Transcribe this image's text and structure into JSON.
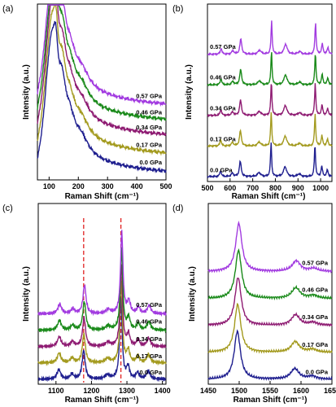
{
  "colors": {
    "0.0 GPa": "#1f1f8f",
    "0.17 GPa": "#a39a1e",
    "0.34 GPa": "#8e1b72",
    "0.46 GPa": "#1a8a1a",
    "0.57 GPa": "#a23be0",
    "marker": "#e02020",
    "axes": "#000000"
  },
  "chart_data": [
    {
      "type": "line",
      "panel": "(a)",
      "xlabel": "Raman Shift (cm⁻¹)",
      "ylabel": "Intensity (a.u.)",
      "xlim": [
        60,
        500
      ],
      "xticks": [
        100,
        200,
        300,
        400,
        500
      ],
      "series_order": [
        "0.0 GPa",
        "0.17 GPa",
        "0.34 GPa",
        "0.46 GPa",
        "0.57 GPa"
      ],
      "series_labels": [
        "0.0 GPa",
        "0.17 GPa",
        "0.34 GPa",
        "0.46 GPa",
        "0.57 GPa"
      ],
      "baselines": [
        0.0,
        0.12,
        0.24,
        0.34,
        0.44
      ],
      "scale": 0.5,
      "peaks": [
        [
          105,
          1.0,
          18
        ],
        [
          122,
          0.85,
          12
        ],
        [
          145,
          0.55,
          14
        ],
        [
          170,
          0.35,
          22
        ],
        [
          210,
          0.2,
          30
        ]
      ],
      "background": [
        0.45,
        90,
        180
      ]
    },
    {
      "type": "line",
      "panel": "(b)",
      "xlabel": "Raman Shift (cm⁻¹)",
      "ylabel": "Intensity (a.u.)",
      "xlim": [
        500,
        1050
      ],
      "xticks": [
        500,
        600,
        700,
        800,
        900,
        1000
      ],
      "series_order": [
        "0.0 GPa",
        "0.17 GPa",
        "0.34 GPa",
        "0.46 GPa",
        "0.57 GPa"
      ],
      "series_labels": [
        "0.0 GPa",
        "0.17 GPa",
        "0.34 GPa",
        "0.46 GPa",
        "0.57 GPa"
      ],
      "baselines": [
        0.0,
        0.2,
        0.4,
        0.6,
        0.8
      ],
      "scale": 0.22,
      "peaks": [
        [
          558,
          0.18,
          4
        ],
        [
          610,
          0.1,
          6
        ],
        [
          645,
          0.45,
          5
        ],
        [
          728,
          0.12,
          8
        ],
        [
          781,
          1.0,
          3
        ],
        [
          843,
          0.3,
          8
        ],
        [
          905,
          0.08,
          8
        ],
        [
          975,
          0.95,
          3
        ],
        [
          1005,
          0.3,
          4
        ],
        [
          1030,
          0.2,
          4
        ]
      ],
      "background": [
        0,
        0,
        1
      ]
    },
    {
      "type": "line",
      "panel": "(c)",
      "xlabel": "Raman Shift (cm⁻¹)",
      "ylabel": "Intensity (a.u.)",
      "xlim": [
        1050,
        1410
      ],
      "xticks": [
        1100,
        1200,
        1300,
        1400
      ],
      "series_order": [
        "0.0 GPa",
        "0.17 GPa",
        "0.34 GPa",
        "0.46 GPa",
        "0.57 GPa"
      ],
      "series_labels": [
        "0.0 GPa",
        "0.17 GPa",
        "0.34 GPa",
        "0.46 GPa",
        "0.57 GPa"
      ],
      "baselines": [
        0.0,
        0.17,
        0.34,
        0.51,
        0.68
      ],
      "scale": 0.85,
      "peaks": [
        [
          1108,
          0.12,
          6
        ],
        [
          1145,
          0.06,
          6
        ],
        [
          1178,
          0.35,
          5
        ],
        [
          1245,
          0.05,
          8
        ],
        [
          1283,
          1.0,
          4
        ],
        [
          1303,
          0.15,
          5
        ],
        [
          1330,
          0.08,
          5
        ],
        [
          1360,
          0.1,
          6
        ]
      ],
      "background": [
        0,
        0,
        1
      ],
      "dashed_lines": [
        1178,
        1283
      ]
    },
    {
      "type": "line",
      "panel": "(d)",
      "xlabel": "Raman Shift (cm⁻¹)",
      "ylabel": "Intensity (a.u.)",
      "xlim": [
        1450,
        1650
      ],
      "xticks": [
        1450,
        1500,
        1550,
        1600,
        1650
      ],
      "series_order": [
        "0.0 GPa",
        "0.17 GPa",
        "0.34 GPa",
        "0.46 GPa",
        "0.57 GPa"
      ],
      "series_labels": [
        "0.0 GPa",
        "0.17 GPa",
        "0.34 GPa",
        "0.46 GPa",
        "0.57 GPa"
      ],
      "baselines": [
        0.0,
        0.18,
        0.36,
        0.54,
        0.72
      ],
      "scale": 0.32,
      "peaks": [
        [
          1497,
          1.0,
          6
        ],
        [
          1590,
          0.22,
          8
        ],
        [
          1618,
          0.06,
          8
        ]
      ],
      "background": [
        0,
        0,
        1
      ]
    }
  ]
}
